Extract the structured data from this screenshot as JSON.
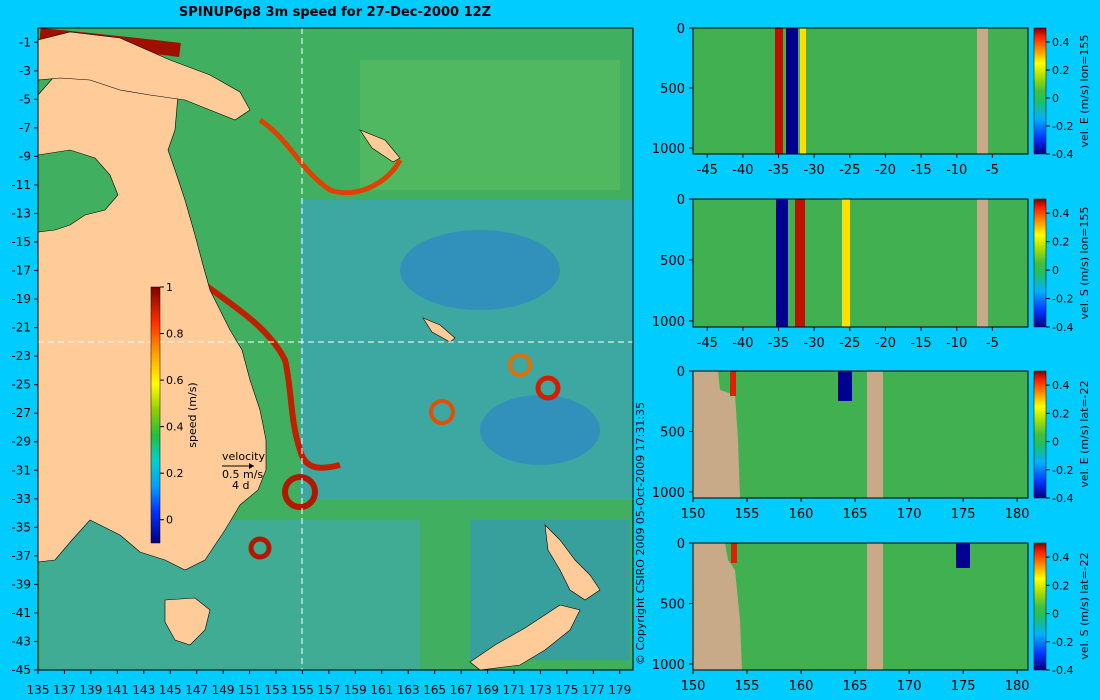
{
  "title": "SPINUP6p8 3m speed for 27-Dec-2000 12Z",
  "copyright": "© Copyright CSIRO 2009   05-Oct-2009 17:31:35",
  "colors": {
    "background": "#00ccff",
    "land_map": "#ffcc99",
    "land_section": "#c8aa88",
    "guide_line": "#ffffff"
  },
  "chart_data": [
    {
      "type": "heatmap",
      "name": "map",
      "title": "SPINUP6p8 3m speed for 27-Dec-2000 12Z",
      "xlim": [
        135,
        180
      ],
      "ylim": [
        -45,
        0
      ],
      "x_ticks": [
        135,
        137,
        139,
        141,
        143,
        145,
        147,
        149,
        151,
        153,
        155,
        157,
        159,
        161,
        163,
        165,
        167,
        169,
        171,
        173,
        175,
        177,
        179
      ],
      "y_ticks": [
        -1,
        -3,
        -5,
        -7,
        -9,
        -11,
        -13,
        -15,
        -17,
        -19,
        -21,
        -23,
        -25,
        -27,
        -29,
        -31,
        -33,
        -35,
        -37,
        -39,
        -41,
        -43,
        -45
      ],
      "colorbar": {
        "label": "speed (m/s)",
        "range": [
          -0.1,
          1
        ],
        "ticks": [
          "1",
          "0.8",
          "0.6",
          "0.4",
          "0.2",
          "0"
        ],
        "tick_values": [
          1,
          0.8,
          0.6,
          0.4,
          0.2,
          0
        ]
      },
      "velocity_key": {
        "label": "velocity",
        "speed": "0.5 m/s",
        "duration": "4 d"
      },
      "section_lines": {
        "lon": 155,
        "lat": -22
      }
    },
    {
      "type": "heatmap",
      "name": "section-1",
      "xlim": [
        -47,
        0
      ],
      "ylim": [
        1050,
        0
      ],
      "x_ticks": [
        -45,
        -40,
        -35,
        -30,
        -25,
        -20,
        -15,
        -10,
        -5
      ],
      "y_ticks": [
        0,
        500,
        1000
      ],
      "colorbar": {
        "label": "vel. E (m/s) lon=155",
        "range": [
          -0.4,
          0.5
        ],
        "ticks": [
          "0.4",
          "0.2",
          "0",
          "-0.2",
          "-0.4"
        ],
        "tick_values": [
          0.4,
          0.2,
          0,
          -0.2,
          -0.4
        ]
      }
    },
    {
      "type": "heatmap",
      "name": "section-2",
      "xlim": [
        -47,
        0
      ],
      "ylim": [
        1050,
        0
      ],
      "x_ticks": [
        -45,
        -40,
        -35,
        -30,
        -25,
        -20,
        -15,
        -10,
        -5
      ],
      "y_ticks": [
        0,
        500,
        1000
      ],
      "colorbar": {
        "label": "vel. S (m/s) lon=155",
        "range": [
          -0.4,
          0.5
        ],
        "ticks": [
          "0.4",
          "0.2",
          "0",
          "-0.2",
          "-0.4"
        ],
        "tick_values": [
          0.4,
          0.2,
          0,
          -0.2,
          -0.4
        ]
      }
    },
    {
      "type": "heatmap",
      "name": "section-3",
      "xlim": [
        150,
        181
      ],
      "ylim": [
        1050,
        0
      ],
      "x_ticks": [
        150,
        155,
        160,
        165,
        170,
        175,
        180
      ],
      "y_ticks": [
        0,
        500,
        1000
      ],
      "colorbar": {
        "label": "vel. E (m/s) lat=-22",
        "range": [
          -0.4,
          0.5
        ],
        "ticks": [
          "0.4",
          "0.2",
          "0",
          "-0.2",
          "-0.4"
        ],
        "tick_values": [
          0.4,
          0.2,
          0,
          -0.2,
          -0.4
        ]
      }
    },
    {
      "type": "heatmap",
      "name": "section-4",
      "xlim": [
        150,
        181
      ],
      "ylim": [
        1050,
        0
      ],
      "x_ticks": [
        150,
        155,
        160,
        165,
        170,
        175,
        180
      ],
      "y_ticks": [
        0,
        500,
        1000
      ],
      "colorbar": {
        "label": "vel. S (m/s) lat=-22",
        "range": [
          -0.4,
          0.5
        ],
        "ticks": [
          "0.4",
          "0.2",
          "0",
          "-0.2",
          "-0.4"
        ],
        "tick_values": [
          0.4,
          0.2,
          0,
          -0.2,
          -0.4
        ]
      }
    }
  ]
}
